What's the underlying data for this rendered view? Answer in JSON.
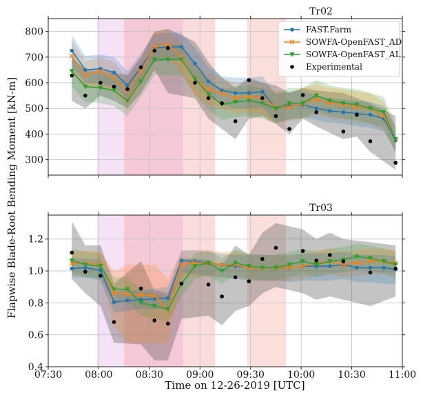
{
  "chart_data": {
    "type": "line",
    "xlabel": "Time on 12-26-2019 [UTC]",
    "ylabel": "Flapwise Blade-Root Bending Moment [kN-m]",
    "xlim": [
      "07:30",
      "11:00"
    ],
    "xticks": [
      "07:30",
      "08:00",
      "08:30",
      "09:00",
      "09:30",
      "10:00",
      "10:30",
      "11:00"
    ],
    "shaded_intervals": [
      {
        "start": "07:59",
        "end": "08:15",
        "color": "#f3d8f3"
      },
      {
        "start": "08:15",
        "end": "08:50",
        "color": "#f2b5c8"
      },
      {
        "start": "08:50",
        "end": "09:09",
        "color": "#f7d0cf"
      },
      {
        "start": "09:28",
        "end": "09:51",
        "color": "#f8d4d0"
      }
    ],
    "legend": {
      "placement": "top-right",
      "entries": [
        {
          "label": "FAST.Farm",
          "color": "#1f77b4",
          "marker": "circle"
        },
        {
          "label": "SOWFA-OpenFAST_AD",
          "color": "#ff7f0e",
          "marker": "x"
        },
        {
          "label": "SOWFA-OpenFAST_AL",
          "color": "#2ca02c",
          "marker": "triangle-down"
        },
        {
          "label": "Experimental",
          "color": "#000000",
          "marker": "dot"
        }
      ]
    },
    "panels": [
      {
        "title": "Tr02",
        "ylim": [
          240,
          850
        ],
        "yticks": [
          "300",
          "400",
          "500",
          "600",
          "700",
          "800"
        ],
        "x": [
          "07:44",
          "07:52",
          "08:01",
          "08:09",
          "08:17",
          "08:25",
          "08:33",
          "08:41",
          "08:49",
          "08:57",
          "09:05",
          "09:13",
          "09:21",
          "09:29",
          "09:37",
          "09:45",
          "09:53",
          "10:01",
          "10:09",
          "10:17",
          "10:25",
          "10:33",
          "10:41",
          "10:49",
          "10:56"
        ],
        "series": [
          {
            "name": "FAST.Farm",
            "values": [
              725,
              650,
              655,
              640,
              590,
              660,
              735,
              740,
              740,
              675,
              605,
              570,
              560,
              560,
              565,
              500,
              510,
              515,
              500,
              490,
              485,
              480,
              475,
              460,
              375
            ],
            "band_low": [
              665,
              600,
              600,
              580,
              540,
              610,
              680,
              690,
              690,
              615,
              555,
              515,
              500,
              500,
              505,
              445,
              455,
              465,
              455,
              445,
              440,
              430,
              425,
              410,
              330
            ],
            "band_high": [
              785,
              705,
              710,
              700,
              645,
              715,
              790,
              795,
              795,
              735,
              660,
              625,
              620,
              620,
              625,
              555,
              565,
              570,
              550,
              540,
              535,
              530,
              525,
              510,
              425
            ]
          },
          {
            "name": "SOWFA-OpenFAST_AD",
            "values": [
              705,
              630,
              645,
              620,
              565,
              645,
              740,
              750,
              700,
              610,
              575,
              560,
              540,
              545,
              540,
              505,
              505,
              520,
              535,
              520,
              515,
              505,
              500,
              470,
              380
            ],
            "band_low": [
              645,
              575,
              590,
              560,
              510,
              590,
              680,
              695,
              640,
              550,
              515,
              500,
              480,
              485,
              480,
              445,
              450,
              460,
              475,
              460,
              455,
              445,
              440,
              415,
              335
            ],
            "band_high": [
              765,
              685,
              700,
              680,
              620,
              700,
              800,
              805,
              760,
              670,
              635,
              620,
              600,
              605,
              600,
              565,
              560,
              580,
              595,
              580,
              575,
              565,
              560,
              525,
              425
            ]
          },
          {
            "name": "SOWFA-OpenFAST_AL",
            "values": [
              645,
              585,
              580,
              570,
              530,
              605,
              690,
              690,
              690,
              615,
              555,
              515,
              525,
              530,
              520,
              500,
              520,
              520,
              550,
              530,
              520,
              515,
              500,
              485,
              380
            ],
            "band_low": [
              585,
              525,
              520,
              510,
              470,
              545,
              630,
              630,
              630,
              555,
              495,
              455,
              465,
              470,
              460,
              440,
              460,
              460,
              490,
              470,
              460,
              455,
              440,
              425,
              330
            ],
            "band_high": [
              705,
              645,
              640,
              630,
              590,
              665,
              750,
              750,
              750,
              675,
              615,
              575,
              585,
              590,
              580,
              560,
              580,
              580,
              610,
              590,
              580,
              575,
              560,
              545,
              430
            ]
          },
          {
            "name": "Experimental",
            "values": [
              628,
              550,
              600,
              585,
              575,
              660,
              725,
              735,
              600,
              540,
              520,
              450,
              610,
              540,
              470,
              420,
              552,
              485,
              410,
              475,
              372,
              288
            ],
            "x": [
              "07:44",
              "07:52",
              "08:01",
              "08:09",
              "08:17",
              "08:25",
              "08:33",
              "08:41",
              "08:57",
              "09:05",
              "09:13",
              "09:21",
              "09:29",
              "09:37",
              "09:45",
              "09:53",
              "10:01",
              "10:09",
              "10:25",
              "10:33",
              "10:41",
              "10:56"
            ],
            "band_low": [
              530,
              500,
              550,
              530,
              500,
              560,
              650,
              560,
              540,
              460,
              420,
              380,
              460,
              470,
              440,
              400,
              460,
              430,
              380,
              390,
              330,
              260
            ],
            "band_high": [
              700,
              650,
              650,
              640,
              630,
              700,
              800,
              810,
              760,
              680,
              620,
              580,
              620,
              600,
              590,
              560,
              580,
              570,
              560,
              540,
              520,
              470
            ]
          }
        ]
      },
      {
        "title": "Tr03",
        "ylim": [
          0.4,
          1.35
        ],
        "yticks": [
          "0.4",
          "0.6",
          "0.8",
          "1.0",
          "1.2"
        ],
        "x": [
          "07:44",
          "07:52",
          "08:01",
          "08:09",
          "08:17",
          "08:25",
          "08:33",
          "08:41",
          "08:49",
          "08:57",
          "09:05",
          "09:13",
          "09:21",
          "09:29",
          "09:37",
          "09:45",
          "09:53",
          "10:01",
          "10:09",
          "10:17",
          "10:25",
          "10:33",
          "10:41",
          "10:49",
          "10:56"
        ],
        "series": [
          {
            "name": "FAST.Farm",
            "values": [
              1.015,
              1.02,
              1.005,
              0.805,
              0.815,
              0.82,
              0.825,
              0.83,
              1.065,
              1.06,
              1.05,
              1.04,
              1.03,
              1.025,
              1.02,
              1.02,
              1.02,
              1.03,
              1.03,
              1.03,
              1.04,
              1.02,
              1.02,
              1.02,
              1.01
            ],
            "band_low": [
              0.96,
              0.96,
              0.94,
              0.74,
              0.75,
              0.76,
              0.76,
              0.77,
              0.99,
              0.98,
              0.97,
              0.96,
              0.95,
              0.94,
              0.94,
              0.94,
              0.93,
              0.94,
              0.94,
              0.94,
              0.95,
              0.93,
              0.93,
              0.92,
              0.92
            ],
            "band_high": [
              1.08,
              1.08,
              1.07,
              0.87,
              0.88,
              0.88,
              0.89,
              0.9,
              1.13,
              1.13,
              1.12,
              1.11,
              1.1,
              1.1,
              1.1,
              1.1,
              1.1,
              1.11,
              1.11,
              1.11,
              1.12,
              1.1,
              1.1,
              1.1,
              1.09
            ]
          },
          {
            "name": "SOWFA-OpenFAST_AD",
            "values": [
              1.045,
              1.05,
              1.04,
              0.86,
              0.855,
              0.85,
              0.845,
              0.75,
              1.04,
              1.05,
              1.05,
              1.04,
              1.04,
              1.02,
              1.02,
              1.02,
              1.02,
              1.03,
              1.05,
              1.06,
              1.04,
              1.05,
              1.06,
              1.06,
              1.05
            ],
            "band_low": [
              0.97,
              0.97,
              0.96,
              0.66,
              0.55,
              0.55,
              0.55,
              0.55,
              0.96,
              0.97,
              0.97,
              0.96,
              0.96,
              0.94,
              0.94,
              0.94,
              0.94,
              0.95,
              0.97,
              0.98,
              0.96,
              0.97,
              0.98,
              0.98,
              0.97
            ],
            "band_high": [
              1.12,
              1.13,
              1.12,
              1.0,
              1.04,
              1.04,
              1.04,
              0.95,
              1.12,
              1.13,
              1.13,
              1.12,
              1.12,
              1.1,
              1.1,
              1.1,
              1.1,
              1.11,
              1.13,
              1.14,
              1.12,
              1.13,
              1.14,
              1.14,
              1.13
            ]
          },
          {
            "name": "SOWFA-OpenFAST_AL",
            "values": [
              1.065,
              1.04,
              1.03,
              0.885,
              0.885,
              0.8,
              0.78,
              0.76,
              0.92,
              1.03,
              1.05,
              1.0,
              1.05,
              1.03,
              1.02,
              1.02,
              1.04,
              1.06,
              1.04,
              1.06,
              1.07,
              1.09,
              1.08,
              1.06,
              1.04
            ],
            "band_low": [
              0.99,
              0.96,
              0.95,
              0.81,
              0.81,
              0.72,
              0.7,
              0.68,
              0.84,
              0.95,
              0.97,
              0.92,
              0.97,
              0.95,
              0.94,
              0.94,
              0.96,
              0.98,
              0.96,
              0.98,
              0.99,
              1.01,
              1.0,
              0.98,
              0.96
            ],
            "band_high": [
              1.14,
              1.12,
              1.11,
              0.96,
              0.96,
              0.88,
              0.86,
              0.84,
              1.0,
              1.11,
              1.13,
              1.08,
              1.13,
              1.11,
              1.1,
              1.1,
              1.12,
              1.14,
              1.12,
              1.14,
              1.15,
              1.17,
              1.16,
              1.14,
              1.12
            ]
          },
          {
            "name": "Experimental",
            "values": [
              1.115,
              0.995,
              0.97,
              0.68,
              0.89,
              0.69,
              0.67,
              0.92,
              0.915,
              0.84,
              0.96,
              0.935,
              1.075,
              1.145,
              1.125,
              1.065,
              1.1,
              1.06,
              0.99,
              1.015
            ],
            "x": [
              "07:44",
              "07:52",
              "08:01",
              "08:09",
              "08:25",
              "08:33",
              "08:41",
              "08:49",
              "09:05",
              "09:13",
              "09:21",
              "09:29",
              "09:37",
              "09:45",
              "10:01",
              "10:09",
              "10:17",
              "10:25",
              "10:41",
              "10:56"
            ],
            "band_low": [
              0.95,
              0.86,
              0.78,
              0.55,
              0.54,
              0.44,
              0.44,
              0.7,
              0.72,
              0.66,
              0.75,
              0.78,
              0.86,
              0.9,
              0.86,
              0.82,
              0.84,
              0.82,
              0.78,
              0.84
            ],
            "band_high": [
              1.31,
              1.16,
              1.16,
              0.92,
              1.06,
              0.88,
              0.86,
              1.08,
              1.07,
              1.03,
              1.16,
              1.1,
              1.24,
              1.3,
              1.26,
              1.2,
              1.24,
              1.2,
              1.18,
              1.16
            ]
          }
        ]
      }
    ]
  }
}
